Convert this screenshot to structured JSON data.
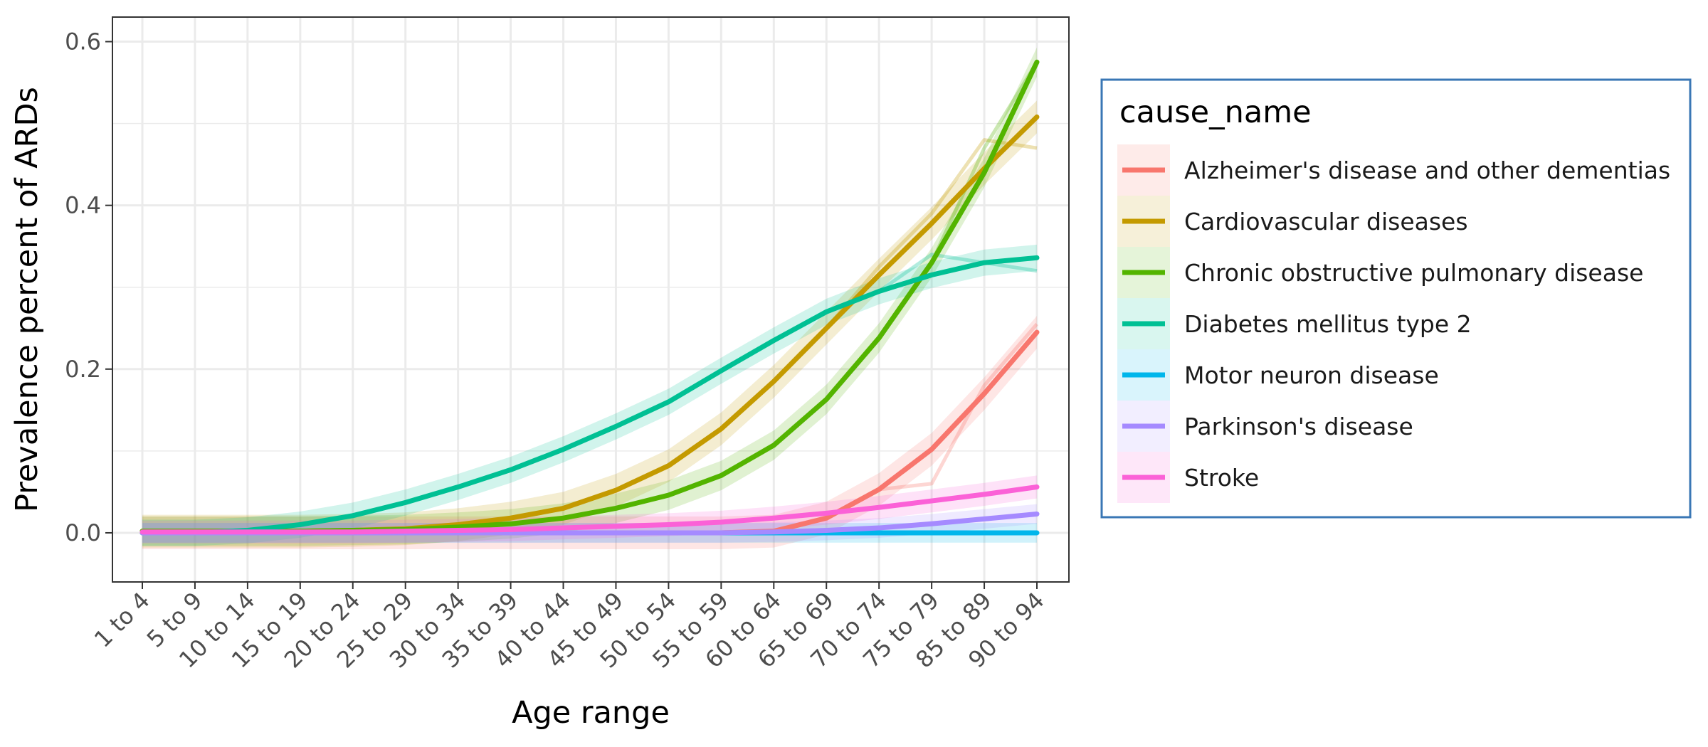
{
  "chart_data": {
    "type": "line",
    "xlabel": "Age range",
    "ylabel": "Prevalence percent of ARDs",
    "ylim": [
      -0.06,
      0.63
    ],
    "yticks": [
      0.0,
      0.2,
      0.4,
      0.6
    ],
    "ytick_labels": [
      "0.0",
      "0.2",
      "0.4",
      "0.6"
    ],
    "grid": true,
    "legend_position": "right",
    "legend_title": "cause_name",
    "categories": [
      "1 to 4",
      "5 to 9",
      "10 to 14",
      "15 to 19",
      "20 to 24",
      "25 to 29",
      "30 to 34",
      "35 to 39",
      "40 to 44",
      "45 to 49",
      "50 to 54",
      "55 to 59",
      "60 to 64",
      "65 to 69",
      "70 to 74",
      "75 to 79",
      "85 to 89",
      "90 to 94"
    ],
    "series": [
      {
        "name": "Alzheimer's disease and other dementias",
        "color": "#F8766D",
        "values": [
          0.0,
          0.0,
          0.0,
          0.0,
          0.0,
          0.0,
          0.0,
          0.0,
          0.0,
          0.0,
          0.0,
          0.0,
          0.002,
          0.018,
          0.053,
          0.102,
          0.17,
          0.245
        ],
        "raw": [
          0.0,
          0.0,
          0.0,
          0.0,
          0.0,
          0.0,
          0.0,
          0.0,
          0.0,
          0.0,
          0.0,
          0.0,
          0.002,
          0.018,
          0.053,
          0.06,
          0.18,
          0.255
        ],
        "band": 0.02
      },
      {
        "name": "Cardiovascular diseases",
        "color": "#C49A00",
        "values": [
          0.002,
          0.002,
          0.002,
          0.002,
          0.003,
          0.005,
          0.01,
          0.018,
          0.03,
          0.052,
          0.082,
          0.127,
          0.185,
          0.25,
          0.315,
          0.378,
          0.445,
          0.508
        ],
        "raw": [
          0.002,
          0.002,
          0.002,
          0.002,
          0.003,
          0.005,
          0.01,
          0.018,
          0.03,
          0.052,
          0.082,
          0.127,
          0.185,
          0.25,
          0.325,
          0.39,
          0.48,
          0.47
        ],
        "band": 0.02
      },
      {
        "name": "Chronic obstructive pulmonary disease",
        "color": "#53B400",
        "values": [
          0.002,
          0.002,
          0.002,
          0.002,
          0.003,
          0.004,
          0.007,
          0.011,
          0.018,
          0.03,
          0.046,
          0.07,
          0.107,
          0.163,
          0.238,
          0.33,
          0.44,
          0.575
        ],
        "raw": [
          0.002,
          0.002,
          0.002,
          0.002,
          0.003,
          0.004,
          0.007,
          0.011,
          0.018,
          0.03,
          0.046,
          0.07,
          0.107,
          0.163,
          0.238,
          0.33,
          0.47,
          0.575
        ],
        "band": 0.018
      },
      {
        "name": "Diabetes mellitus type 2",
        "color": "#00C094",
        "values": [
          0.0,
          0.0,
          0.003,
          0.01,
          0.021,
          0.037,
          0.056,
          0.077,
          0.102,
          0.13,
          0.16,
          0.198,
          0.235,
          0.27,
          0.295,
          0.315,
          0.33,
          0.336
        ],
        "raw": [
          0.0,
          0.0,
          0.003,
          0.01,
          0.021,
          0.037,
          0.056,
          0.077,
          0.102,
          0.13,
          0.16,
          0.198,
          0.235,
          0.27,
          0.295,
          0.34,
          0.33,
          0.32
        ],
        "band": 0.016
      },
      {
        "name": "Motor neuron disease",
        "color": "#00B6EB",
        "values": [
          0.0,
          0.0,
          0.0,
          0.0,
          0.0,
          0.0,
          0.0,
          0.0,
          0.0,
          0.0,
          0.0,
          0.0,
          0.0,
          0.0,
          0.0,
          0.0,
          0.0,
          0.0
        ],
        "raw": [
          0.0,
          0.0,
          0.0,
          0.0,
          0.0,
          0.0,
          0.0,
          0.0,
          0.0,
          0.0,
          0.0,
          0.0,
          0.0,
          0.0,
          0.0,
          0.0,
          0.0,
          0.0
        ],
        "band": 0.012
      },
      {
        "name": "Parkinson's disease",
        "color": "#A58AFF",
        "values": [
          0.0,
          0.0,
          0.0,
          0.0,
          0.0,
          0.0,
          0.0,
          0.0,
          0.0,
          0.0,
          0.0,
          0.0,
          0.001,
          0.003,
          0.006,
          0.011,
          0.017,
          0.023
        ],
        "raw": [
          0.0,
          0.0,
          0.0,
          0.0,
          0.0,
          0.0,
          0.0,
          0.0,
          0.0,
          0.0,
          0.0,
          0.0,
          0.001,
          0.003,
          0.006,
          0.011,
          0.017,
          0.023
        ],
        "band": 0.012
      },
      {
        "name": "Stroke",
        "color": "#FB61D7",
        "values": [
          0.001,
          0.001,
          0.001,
          0.001,
          0.001,
          0.002,
          0.003,
          0.004,
          0.006,
          0.008,
          0.01,
          0.013,
          0.018,
          0.024,
          0.031,
          0.039,
          0.047,
          0.056
        ],
        "raw": [
          0.001,
          0.001,
          0.001,
          0.001,
          0.001,
          0.002,
          0.003,
          0.004,
          0.006,
          0.008,
          0.01,
          0.013,
          0.018,
          0.024,
          0.031,
          0.039,
          0.047,
          0.056
        ],
        "band": 0.014
      }
    ]
  }
}
